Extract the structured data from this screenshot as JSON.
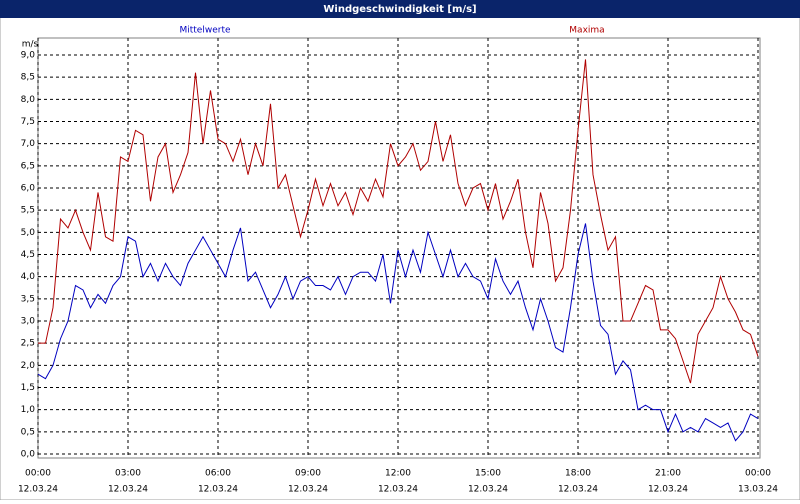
{
  "chart_data": {
    "type": "line",
    "title": "Windgeschwindigkeit [m/s]",
    "y_unit_label": "m/s",
    "x": [
      0,
      0.25,
      0.5,
      0.75,
      1,
      1.25,
      1.5,
      1.75,
      2,
      2.25,
      2.5,
      2.75,
      3,
      3.25,
      3.5,
      3.75,
      4,
      4.25,
      4.5,
      4.75,
      5,
      5.25,
      5.5,
      5.75,
      6,
      6.25,
      6.5,
      6.75,
      7,
      7.25,
      7.5,
      7.75,
      8,
      8.25,
      8.5,
      8.75,
      9,
      9.25,
      9.5,
      9.75,
      10,
      10.25,
      10.5,
      10.75,
      11,
      11.25,
      11.5,
      11.75,
      12,
      12.25,
      12.5,
      12.75,
      13,
      13.25,
      13.5,
      13.75,
      14,
      14.25,
      14.5,
      14.75,
      15,
      15.25,
      15.5,
      15.75,
      16,
      16.25,
      16.5,
      16.75,
      17,
      17.25,
      17.5,
      17.75,
      18,
      18.25,
      18.5,
      18.75,
      19,
      19.25,
      19.5,
      19.75,
      20,
      20.25,
      20.5,
      20.75,
      21,
      21.25,
      21.5,
      21.75,
      22,
      22.25,
      22.5,
      22.75,
      23,
      23.25,
      23.5,
      23.75,
      24
    ],
    "series": [
      {
        "name": "Mittelwerte",
        "color": "#0000c0",
        "values": [
          1.8,
          1.7,
          2.0,
          2.6,
          3.0,
          3.8,
          3.7,
          3.3,
          3.6,
          3.4,
          3.8,
          4.0,
          4.9,
          4.8,
          4.0,
          4.3,
          3.9,
          4.3,
          4.0,
          3.8,
          4.3,
          4.6,
          4.9,
          4.6,
          4.3,
          4.0,
          4.6,
          5.1,
          3.9,
          4.1,
          3.7,
          3.3,
          3.6,
          4.0,
          3.5,
          3.9,
          4.0,
          3.8,
          3.8,
          3.7,
          4.0,
          3.6,
          4.0,
          4.1,
          4.1,
          3.9,
          4.5,
          3.4,
          4.6,
          4.0,
          4.6,
          4.1,
          5.0,
          4.5,
          4.0,
          4.6,
          4.0,
          4.3,
          4.0,
          3.9,
          3.5,
          4.4,
          3.9,
          3.6,
          3.9,
          3.3,
          2.8,
          3.5,
          3.0,
          2.4,
          2.3,
          3.3,
          4.5,
          5.2,
          3.9,
          2.9,
          2.7,
          1.8,
          2.1,
          1.9,
          1.0,
          1.1,
          1.0,
          1.0,
          0.5,
          0.9,
          0.5,
          0.6,
          0.5,
          0.8,
          0.7,
          0.6,
          0.7,
          0.3,
          0.5,
          0.9,
          0.8
        ]
      },
      {
        "name": "Maxima",
        "color": "#b00000",
        "values": [
          2.5,
          2.5,
          3.3,
          5.3,
          5.1,
          5.5,
          5.0,
          4.6,
          5.9,
          4.9,
          4.8,
          6.7,
          6.6,
          7.3,
          7.2,
          5.7,
          6.7,
          7.0,
          5.9,
          6.3,
          6.8,
          8.6,
          7.0,
          8.2,
          7.1,
          7.0,
          6.6,
          7.1,
          6.3,
          7.0,
          6.5,
          7.9,
          6.0,
          6.3,
          5.6,
          4.9,
          5.5,
          6.2,
          5.6,
          6.1,
          5.6,
          5.9,
          5.4,
          6.0,
          5.7,
          6.2,
          5.8,
          7.0,
          6.5,
          6.7,
          7.0,
          6.4,
          6.6,
          7.5,
          6.6,
          7.2,
          6.1,
          5.6,
          6.0,
          6.1,
          5.5,
          6.1,
          5.3,
          5.7,
          6.2,
          5.0,
          4.2,
          5.9,
          5.2,
          3.9,
          4.2,
          5.5,
          7.3,
          8.9,
          6.3,
          5.4,
          4.6,
          4.9,
          3.0,
          3.0,
          3.4,
          3.8,
          3.7,
          2.8,
          2.8,
          2.6,
          2.1,
          1.6,
          2.7,
          3.0,
          3.3,
          4.0,
          3.5,
          3.2,
          2.8,
          2.7,
          2.2
        ]
      }
    ],
    "xlim": [
      0,
      24
    ],
    "xticks": [
      {
        "value": 0,
        "label": "00:00",
        "date": "12.03.24"
      },
      {
        "value": 3,
        "label": "03:00",
        "date": "12.03.24"
      },
      {
        "value": 6,
        "label": "06:00",
        "date": "12.03.24"
      },
      {
        "value": 9,
        "label": "09:00",
        "date": "12.03.24"
      },
      {
        "value": 12,
        "label": "12:00",
        "date": "12.03.24"
      },
      {
        "value": 15,
        "label": "15:00",
        "date": "12.03.24"
      },
      {
        "value": 18,
        "label": "18:00",
        "date": "12.03.24"
      },
      {
        "value": 21,
        "label": "21:00",
        "date": "12.03.24"
      },
      {
        "value": 24,
        "label": "00:00",
        "date": "13.03.24"
      }
    ],
    "ylim": [
      0,
      9
    ],
    "yticks": [
      {
        "value": 0,
        "label": "0,0"
      },
      {
        "value": 0.5,
        "label": "0,5"
      },
      {
        "value": 1,
        "label": "1,0"
      },
      {
        "value": 1.5,
        "label": "1,5"
      },
      {
        "value": 2,
        "label": "2,0"
      },
      {
        "value": 2.5,
        "label": "2,5"
      },
      {
        "value": 3,
        "label": "3,0"
      },
      {
        "value": 3.5,
        "label": "3,5"
      },
      {
        "value": 4,
        "label": "4,0"
      },
      {
        "value": 4.5,
        "label": "4,5"
      },
      {
        "value": 5,
        "label": "5,0"
      },
      {
        "value": 5.5,
        "label": "5,5"
      },
      {
        "value": 6,
        "label": "6,0"
      },
      {
        "value": 6.5,
        "label": "6,5"
      },
      {
        "value": 7,
        "label": "7,0"
      },
      {
        "value": 7.5,
        "label": "7,5"
      },
      {
        "value": 8,
        "label": "8,0"
      },
      {
        "value": 8.5,
        "label": "8,5"
      },
      {
        "value": 9,
        "label": "9,0"
      }
    ],
    "grid": true
  }
}
